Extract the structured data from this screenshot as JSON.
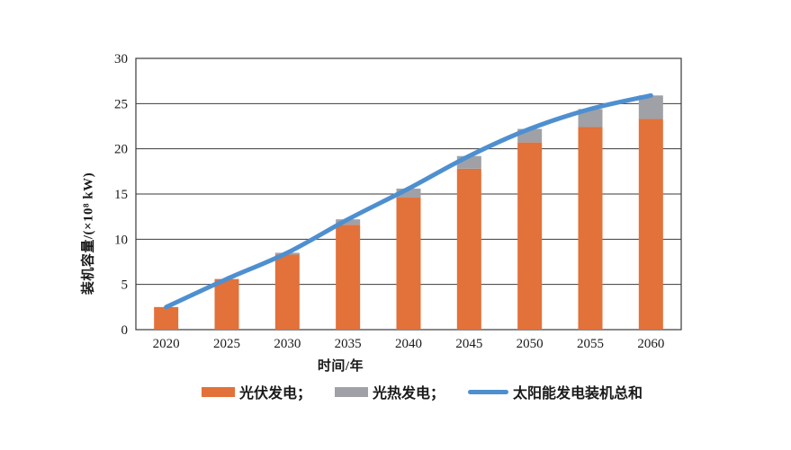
{
  "page": {
    "background": "#ffffff"
  },
  "colors": {
    "pv_orange": "#E2713A",
    "csp_gray": "#9FA1A6",
    "total_blue": "#4E8FD0",
    "axis_line": "#3a3a3a",
    "text": "#1a1a1a"
  },
  "chart_data": {
    "type": "bar",
    "subtype": "stacked-bars-with-smooth-line-overlay",
    "categories": [
      "2020",
      "2025",
      "2030",
      "2035",
      "2040",
      "2045",
      "2050",
      "2055",
      "2060"
    ],
    "series": [
      {
        "name": "光伏发电",
        "kind": "bar",
        "color": "#E2713A",
        "values": [
          2.5,
          5.6,
          8.3,
          11.6,
          14.6,
          17.8,
          20.7,
          22.4,
          23.3
        ]
      },
      {
        "name": "光热发电",
        "kind": "bar",
        "color": "#9FA1A6",
        "values": [
          0,
          0,
          0.2,
          0.6,
          1.0,
          1.4,
          1.5,
          2.0,
          2.6
        ]
      },
      {
        "name": "太阳能发电装机总和",
        "kind": "line",
        "color": "#4E8FD0",
        "values": [
          2.5,
          5.6,
          8.5,
          12.2,
          15.6,
          19.2,
          22.2,
          24.4,
          25.9
        ]
      }
    ],
    "title": "",
    "xlabel": "时间/年",
    "ylabel": "装机容量/(×10⁸ kW)",
    "ylim": [
      0,
      30
    ],
    "ytick_step": 5,
    "yticks": [
      "0",
      "5",
      "10",
      "15",
      "20",
      "25",
      "30"
    ],
    "grid": "horizontal",
    "legend_position": "bottom"
  },
  "legend": {
    "items": [
      {
        "label": "光伏发电；",
        "swatch": "bar",
        "color": "#E2713A"
      },
      {
        "label": "光热发电；",
        "swatch": "bar",
        "color": "#9FA1A6"
      },
      {
        "label": "太阳能发电装机总和",
        "swatch": "line",
        "color": "#4E8FD0"
      }
    ]
  }
}
